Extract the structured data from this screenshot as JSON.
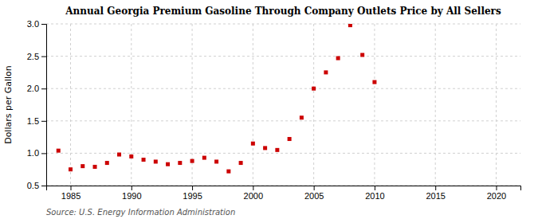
{
  "chart_data": {
    "type": "scatter",
    "title": "Annual Georgia Premium Gasoline Through Company Outlets Price by All Sellers",
    "y_label": "Dollars per Gallon",
    "source": "Source: U.S. Energy Information Administration",
    "x": [
      1984,
      1985,
      1986,
      1987,
      1988,
      1989,
      1990,
      1991,
      1992,
      1993,
      1994,
      1995,
      1996,
      1997,
      1998,
      1999,
      2000,
      2001,
      2002,
      2003,
      2004,
      2005,
      2006,
      2007,
      2008,
      2009,
      2010
    ],
    "values": [
      1.04,
      0.75,
      0.8,
      0.79,
      0.85,
      0.98,
      0.95,
      0.9,
      0.87,
      0.83,
      0.85,
      0.88,
      0.93,
      0.87,
      0.72,
      0.85,
      1.15,
      1.08,
      1.05,
      1.22,
      1.55,
      2.0,
      2.25,
      2.47,
      2.98,
      2.52,
      2.1
    ],
    "color": "#cc0000",
    "marker": "square",
    "xlim": [
      1983,
      2022
    ],
    "ylim": [
      0.5,
      3.0
    ],
    "xticks": [
      1985,
      1990,
      1995,
      2000,
      2005,
      2010,
      2015,
      2020
    ],
    "yticks": [
      0.5,
      {
        "value": 1,
        "label": "1.0"
      },
      1.5,
      {
        "value": 2,
        "label": "2.0"
      },
      2.5,
      {
        "value": 3,
        "label": "3.0"
      }
    ],
    "grid": true
  }
}
